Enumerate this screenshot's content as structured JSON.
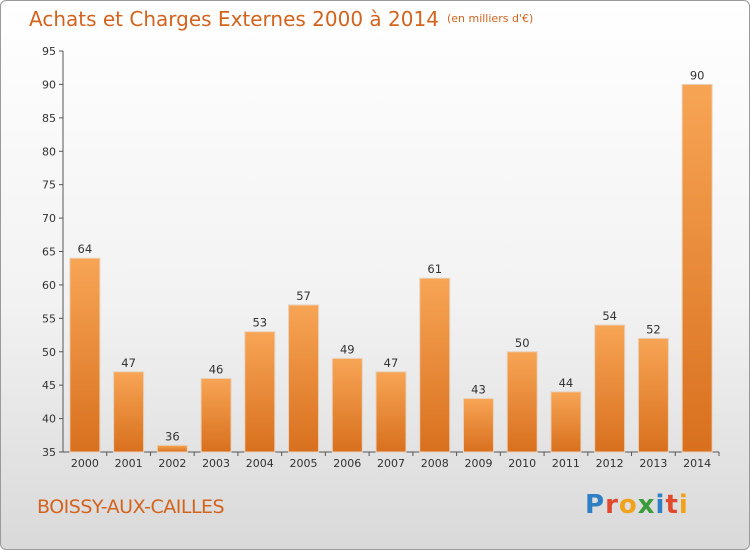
{
  "header": {
    "title": "Achats et Charges Externes 2000 à 2014",
    "unit": "(en milliers d'€)"
  },
  "footer": {
    "place": "BOISSY-AUX-CAILLES",
    "logo": [
      "P",
      "r",
      "o",
      "x",
      "i",
      "t",
      "i"
    ],
    "logo_colors": [
      "#2f7fc4",
      "#e0492c",
      "#f0a21a",
      "#3a9c3a",
      "#2f7fc4",
      "#e0492c",
      "#f0a21a"
    ]
  },
  "chart_data": {
    "type": "bar",
    "title": "Achats et Charges Externes 2000 à 2014",
    "categories": [
      "2000",
      "2001",
      "2002",
      "2003",
      "2004",
      "2005",
      "2006",
      "2007",
      "2008",
      "2009",
      "2010",
      "2011",
      "2012",
      "2013",
      "2014"
    ],
    "values": [
      64,
      47,
      36,
      46,
      53,
      57,
      49,
      47,
      61,
      43,
      50,
      44,
      54,
      52,
      90
    ],
    "ylim": [
      35,
      95
    ],
    "yticks": [
      35,
      40,
      45,
      50,
      55,
      60,
      65,
      70,
      75,
      80,
      85,
      90,
      95
    ],
    "grid": false,
    "bar_color_top": "#f7a555",
    "bar_color_bottom": "#d8701e"
  }
}
